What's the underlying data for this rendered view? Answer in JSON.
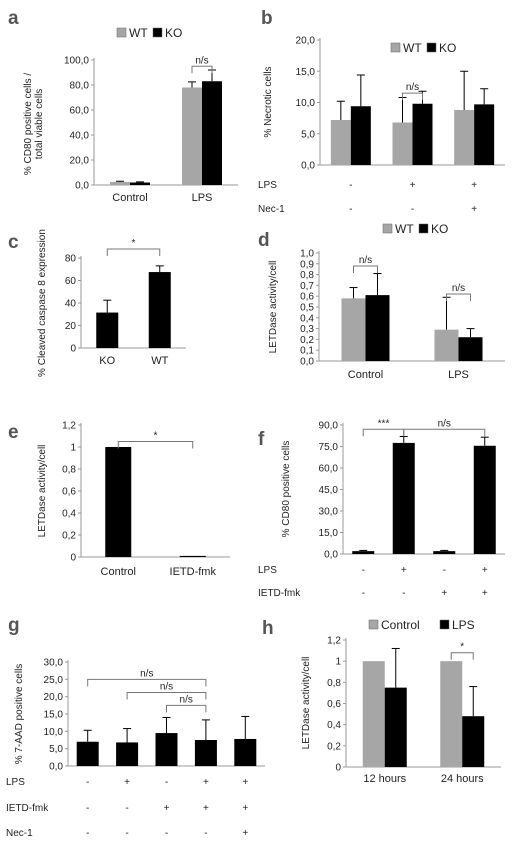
{
  "colors": {
    "wt": "#a6a6a6",
    "ko": "#000000",
    "control": "#a6a6a6",
    "lps": "#000000",
    "single": "#000000"
  },
  "chart_data": [
    {
      "panel": "a",
      "type": "bar",
      "ylabel": "% CD80 positive cells / total viable cells",
      "ylim": [
        0,
        100
      ],
      "yticks": [
        "0,0",
        "20,0",
        "40,0",
        "60,0",
        "80,0",
        "100,0"
      ],
      "categories": [
        "Control",
        "LPS"
      ],
      "legend": [
        "WT",
        "KO"
      ],
      "series": [
        {
          "name": "WT",
          "values": [
            2.5,
            78.0
          ],
          "errors": [
            0.5,
            4.5
          ],
          "color": "wt"
        },
        {
          "name": "KO",
          "values": [
            2.0,
            83.0
          ],
          "errors": [
            0.5,
            9.0
          ],
          "color": "ko"
        }
      ],
      "annotations": [
        {
          "text": "n/s",
          "group": 1,
          "left_bar": 0,
          "right_bar": 1,
          "y": 95
        }
      ]
    },
    {
      "panel": "b",
      "type": "bar",
      "ylabel": "% Necrotic cells",
      "ylim": [
        0,
        20
      ],
      "yticks": [
        "0,0",
        "5,0",
        "10,0",
        "15,0",
        "20,0"
      ],
      "categories": [
        "",
        "",
        ""
      ],
      "legend": [
        "WT",
        "KO"
      ],
      "series": [
        {
          "name": "WT",
          "values": [
            7.2,
            6.8,
            8.8
          ],
          "errors": [
            3.0,
            4.0,
            6.2
          ],
          "color": "wt"
        },
        {
          "name": "KO",
          "values": [
            9.4,
            9.8,
            9.7
          ],
          "errors": [
            5.0,
            2.0,
            2.5
          ],
          "color": "ko"
        }
      ],
      "conditions": [
        {
          "label": "LPS",
          "values": [
            "-",
            "+",
            "+"
          ]
        },
        {
          "label": "Nec-1",
          "values": [
            "-",
            "-",
            "+"
          ]
        }
      ],
      "annotations": [
        {
          "text": "n/s",
          "group": 1,
          "left_bar": 0,
          "right_bar": 1,
          "y": 11.5
        }
      ]
    },
    {
      "panel": "c",
      "type": "bar",
      "ylabel": "% Cleaved caspase 8 expression",
      "ylim": [
        0,
        80
      ],
      "yticks": [
        "0",
        "20",
        "40",
        "60",
        "80"
      ],
      "categories": [
        "KO",
        "WT"
      ],
      "series": [
        {
          "name": "",
          "values": [
            31.5,
            67.5
          ],
          "errors": [
            11.0,
            5.5
          ],
          "color": "single"
        }
      ],
      "annotations": [
        {
          "text": "*",
          "left_group": 0,
          "right_group": 1,
          "y": 88
        }
      ]
    },
    {
      "panel": "d",
      "type": "bar",
      "ylabel": "LETDase activity/cell",
      "ylim": [
        0,
        1.0
      ],
      "yticks": [
        "0,0",
        "0,1",
        "0,2",
        "0,3",
        "0,4",
        "0,5",
        "0,6",
        "0,7",
        "0,8",
        "0,9",
        "1,0"
      ],
      "categories": [
        "Control",
        "LPS"
      ],
      "legend": [
        "WT",
        "KO"
      ],
      "series": [
        {
          "name": "WT",
          "values": [
            0.58,
            0.29
          ],
          "errors": [
            0.1,
            0.3
          ],
          "color": "wt"
        },
        {
          "name": "KO",
          "values": [
            0.61,
            0.22
          ],
          "errors": [
            0.2,
            0.08
          ],
          "color": "ko"
        }
      ],
      "annotations": [
        {
          "text": "n/s",
          "group": 0,
          "left_bar": 0,
          "right_bar": 1,
          "y": 0.88
        },
        {
          "text": "n/s",
          "group": 1,
          "left_bar": 0,
          "right_bar": 1,
          "y": 0.62
        }
      ]
    },
    {
      "panel": "e",
      "type": "bar",
      "ylabel": "LETDase activity/cell",
      "ylim": [
        0,
        1.2
      ],
      "yticks": [
        "0",
        "0,2",
        "0,4",
        "0,6",
        "0,8",
        "1",
        "1,2"
      ],
      "categories": [
        "Control",
        "IETD-fmk"
      ],
      "series": [
        {
          "name": "",
          "values": [
            1.0,
            0.01
          ],
          "errors": [
            0.0,
            0.0
          ],
          "color": "single"
        }
      ],
      "annotations": [
        {
          "text": "*",
          "left_group": 0,
          "right_group": 1,
          "y": 1.05
        }
      ]
    },
    {
      "panel": "f",
      "type": "bar",
      "ylabel": "% CD80 positive cells",
      "ylim": [
        0,
        90
      ],
      "yticks": [
        "0,0",
        "15,0",
        "30,0",
        "45,0",
        "60,0",
        "75,0",
        "90,0"
      ],
      "categories": [
        "",
        "",
        "",
        ""
      ],
      "series": [
        {
          "name": "",
          "values": [
            2.0,
            77.5,
            2.0,
            75.5
          ],
          "errors": [
            0.5,
            4.5,
            0.5,
            6.0
          ],
          "color": "single"
        }
      ],
      "conditions": [
        {
          "label": "LPS",
          "values": [
            "-",
            "+",
            "-",
            "+"
          ]
        },
        {
          "label": "IETD-fmk",
          "values": [
            "-",
            "-",
            "+",
            "+"
          ]
        }
      ],
      "annotations": [
        {
          "text": "***",
          "left_group": 0,
          "right_group": 1,
          "y": 87
        },
        {
          "text": "n/s",
          "left_group": 1,
          "right_group": 3,
          "y": 87
        }
      ]
    },
    {
      "panel": "g",
      "type": "bar",
      "ylabel": "% 7-AAD positive cells",
      "ylim": [
        0,
        30
      ],
      "yticks": [
        "0,0",
        "5,0",
        "10,0",
        "15,0",
        "20,0",
        "25,0",
        "30,0"
      ],
      "categories": [
        "",
        "",
        "",
        "",
        ""
      ],
      "series": [
        {
          "name": "",
          "values": [
            7.0,
            6.8,
            9.5,
            7.5,
            7.8
          ],
          "errors": [
            3.3,
            4.0,
            4.5,
            5.8,
            6.5
          ],
          "color": "single"
        }
      ],
      "conditions": [
        {
          "label": "LPS",
          "values": [
            "-",
            "+",
            "-",
            "+",
            "+"
          ]
        },
        {
          "label": "IETD-fmk",
          "values": [
            "-",
            "-",
            "+",
            "+",
            "+"
          ]
        },
        {
          "label": "Nec-1",
          "values": [
            "-",
            "-",
            "-",
            "-",
            "+"
          ]
        }
      ],
      "annotations": [
        {
          "text": "n/s",
          "left_group": 0,
          "right_group": 3,
          "y": 25
        },
        {
          "text": "n/s",
          "left_group": 1,
          "right_group": 3,
          "y": 21.2
        },
        {
          "text": "n/s",
          "left_group": 2,
          "right_group": 3,
          "y": 17.5
        }
      ]
    },
    {
      "panel": "h",
      "type": "bar",
      "ylabel": "LETDase activity/cell",
      "ylim": [
        0,
        1.2
      ],
      "yticks": [
        "0",
        "0,2",
        "0,4",
        "0,6",
        "0,8",
        "1",
        "1,2"
      ],
      "categories": [
        "12 hours",
        "24 hours"
      ],
      "legend": [
        "Control",
        "LPS"
      ],
      "series": [
        {
          "name": "Control",
          "values": [
            1.0,
            1.0
          ],
          "errors": [
            0.0,
            0.0
          ],
          "color": "control"
        },
        {
          "name": "LPS",
          "values": [
            0.75,
            0.48
          ],
          "errors": [
            0.37,
            0.28
          ],
          "color": "lps"
        }
      ],
      "annotations": [
        {
          "text": "*",
          "group": 1,
          "left_bar": 0,
          "right_bar": 1,
          "y": 1.08
        }
      ]
    }
  ]
}
